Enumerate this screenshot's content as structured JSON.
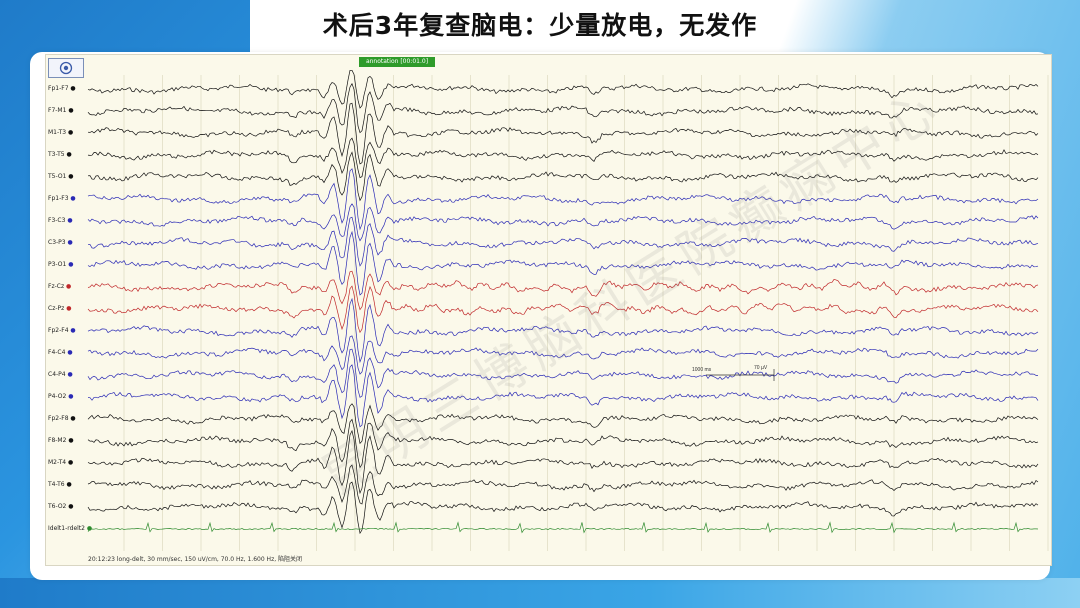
{
  "slide": {
    "title": "术后3年复查脑电：少量放电，无发作"
  },
  "viewer": {
    "annotation_label": "annotation [00:01.0]",
    "status_text": "20:12:23 long-delt, 30 mm/sec, 150 uV/cm, 70.0 Hz, 1.600 Hz, 陷阻关闭",
    "scale_ms": "1000 ms",
    "scale_uv": "70 µV",
    "watermark": "昆明三博脑科医院癫痫中心",
    "channels": [
      {
        "label": "Fp1-F7",
        "color": "#111111"
      },
      {
        "label": "F7-M1",
        "color": "#111111"
      },
      {
        "label": "M1-T3",
        "color": "#111111"
      },
      {
        "label": "T3-T5",
        "color": "#111111"
      },
      {
        "label": "T5-O1",
        "color": "#111111"
      },
      {
        "label": "Fp1-F3",
        "color": "#2a2ab5"
      },
      {
        "label": "F3-C3",
        "color": "#2a2ab5"
      },
      {
        "label": "C3-P3",
        "color": "#2a2ab5"
      },
      {
        "label": "P3-O1",
        "color": "#2a2ab5"
      },
      {
        "label": "Fz-Cz",
        "color": "#c0282a"
      },
      {
        "label": "Cz-Pz",
        "color": "#c0282a"
      },
      {
        "label": "Fp2-F4",
        "color": "#2a2ab5"
      },
      {
        "label": "F4-C4",
        "color": "#2a2ab5"
      },
      {
        "label": "C4-P4",
        "color": "#2a2ab5"
      },
      {
        "label": "P4-O2",
        "color": "#2a2ab5"
      },
      {
        "label": "Fp2-F8",
        "color": "#111111"
      },
      {
        "label": "F8-M2",
        "color": "#111111"
      },
      {
        "label": "M2-T4",
        "color": "#111111"
      },
      {
        "label": "T4-T6",
        "color": "#111111"
      },
      {
        "label": "T6-O2",
        "color": "#111111"
      },
      {
        "label": "Idelt1-rdelt2",
        "color": "#2e8b2e"
      }
    ]
  },
  "icons": {
    "target": "target-icon"
  }
}
